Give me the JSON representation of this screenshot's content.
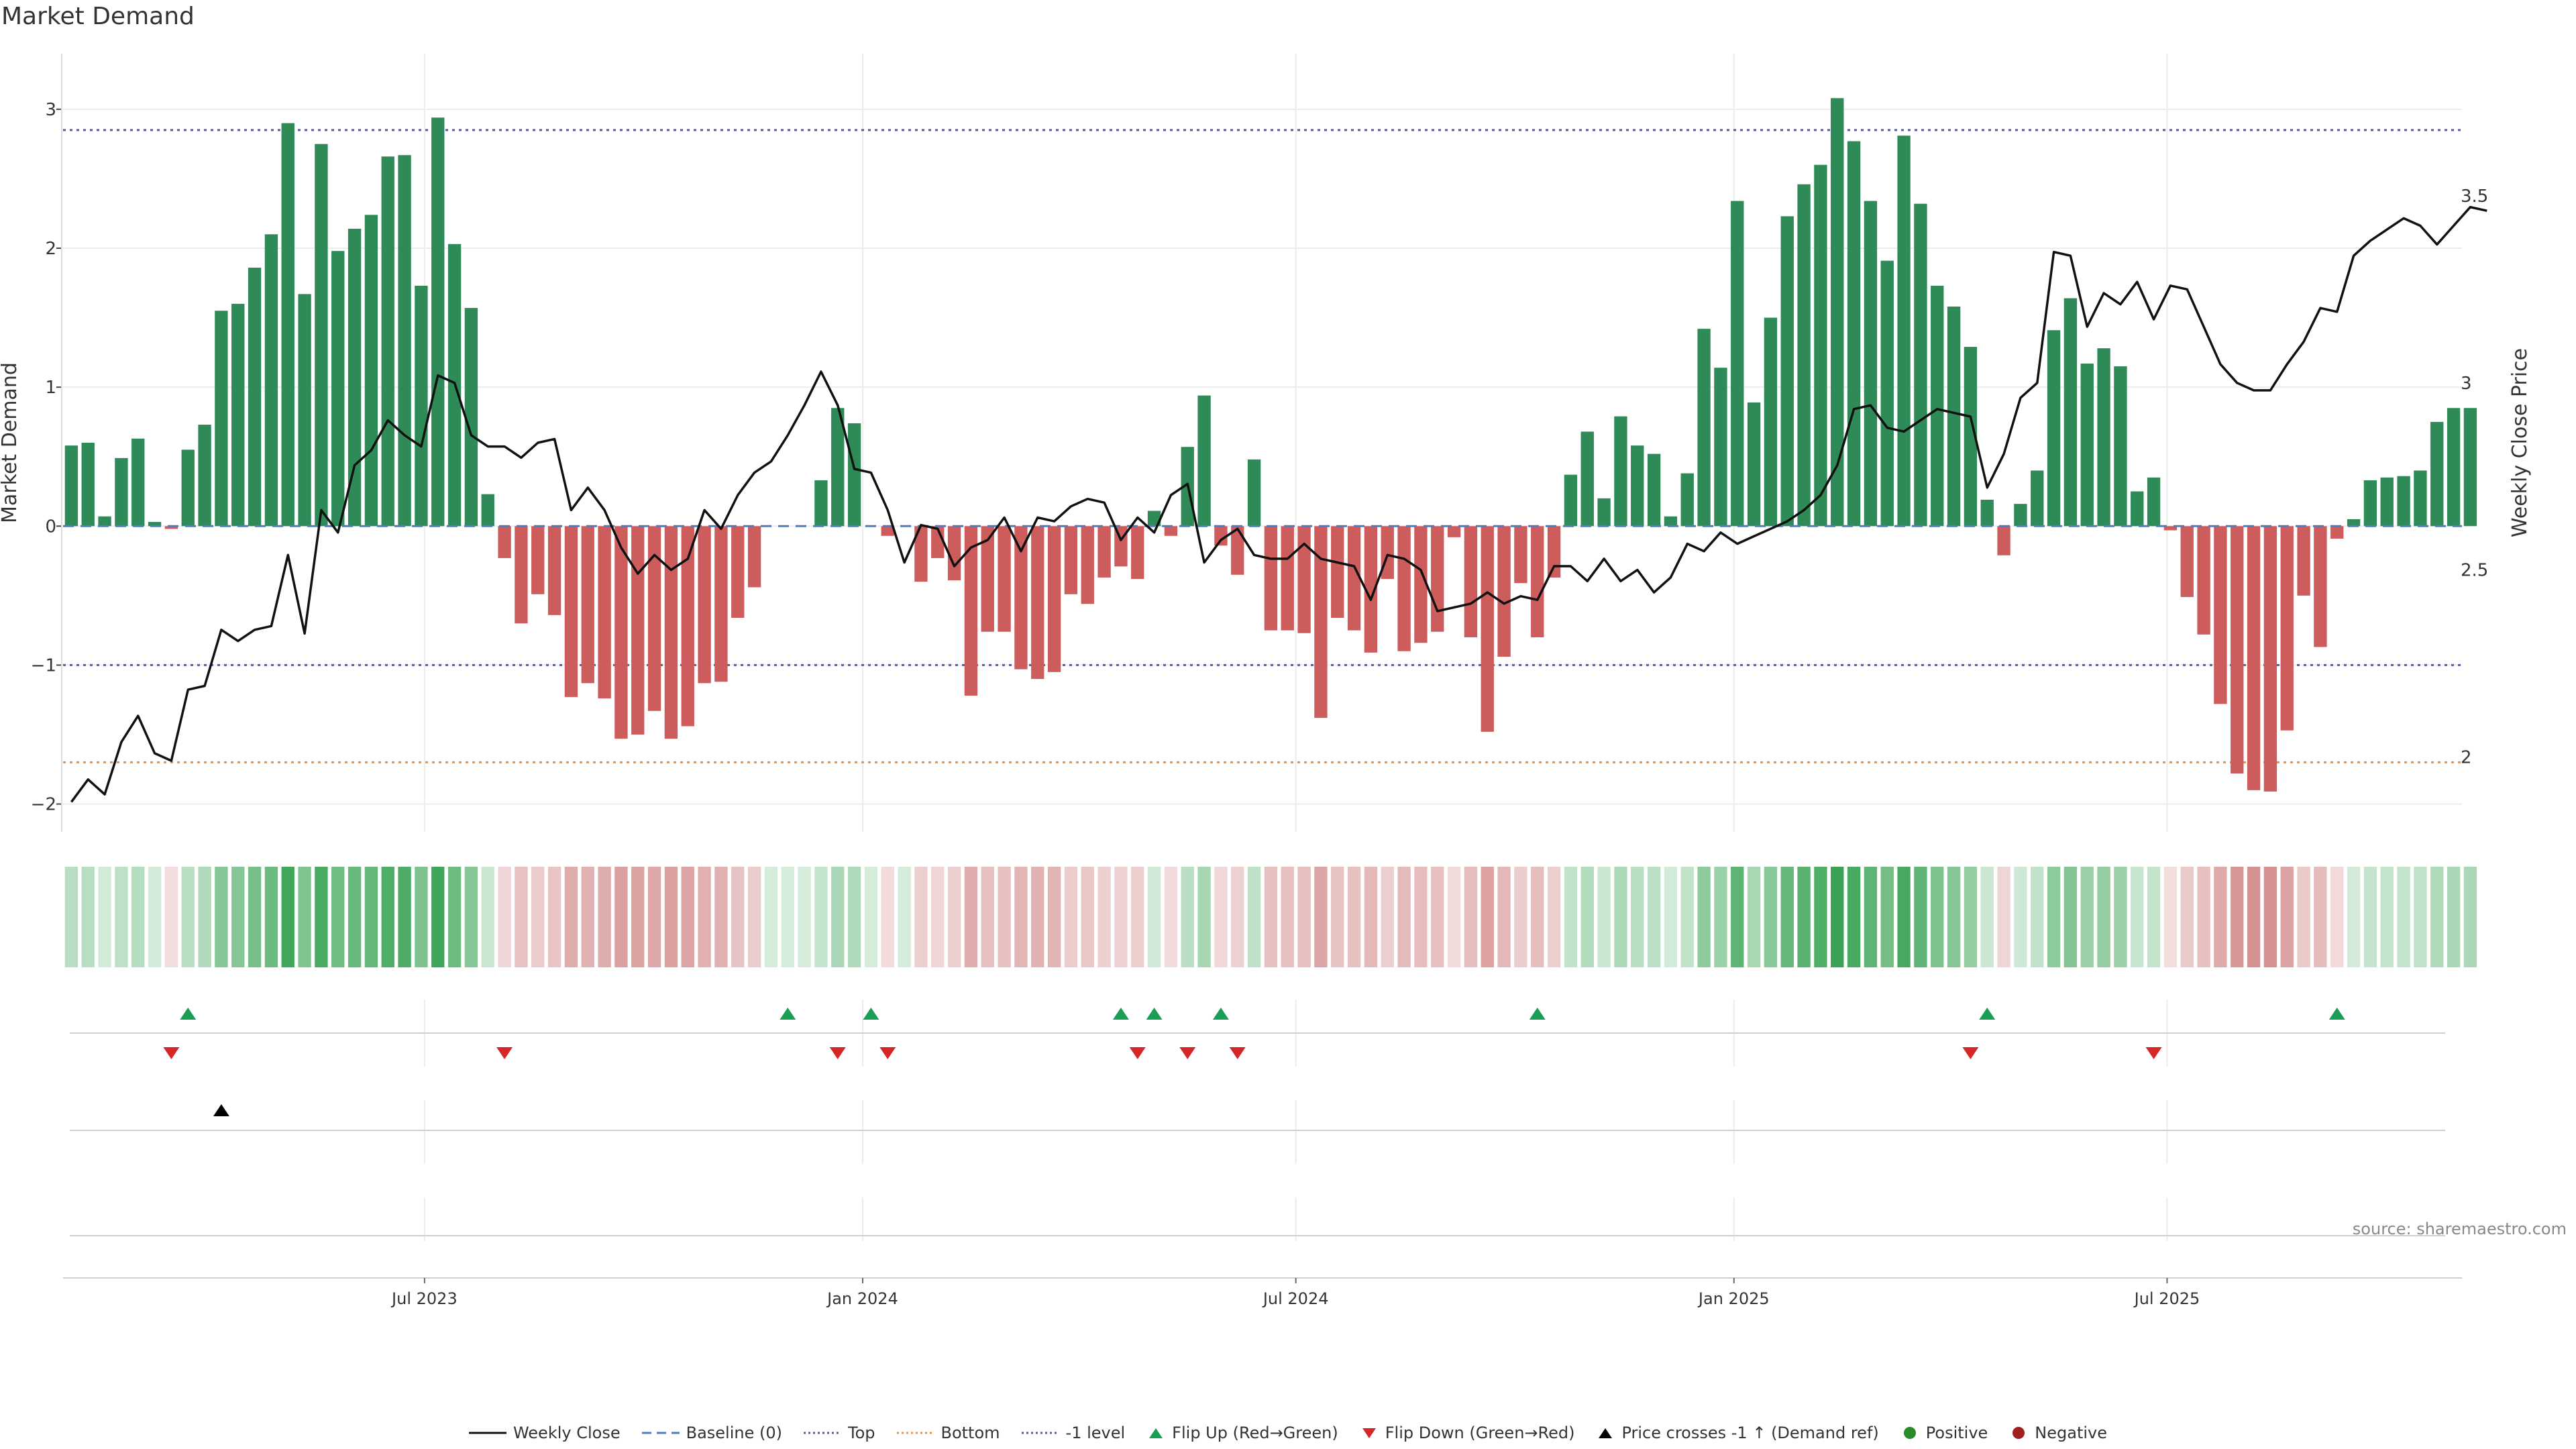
{
  "page": {
    "title": "Market Demand",
    "source": "source: sharemaestro.com"
  },
  "colors": {
    "positive_bar": "#2e8b57",
    "negative_bar": "#cd5c5c",
    "price_line": "#111111",
    "baseline": "#4a7ec0",
    "top_line": "#5a5a9a",
    "bottom_line": "#e8934a",
    "minus1_line": "#5a5a9a",
    "flip_up": "#1a9e55",
    "flip_down": "#d62728",
    "cross": "#000000",
    "heat_pos": "#2e9e4a",
    "heat_neg": "#c05a5a",
    "legend_positive": "#2a8a2a",
    "legend_negative": "#a02020"
  },
  "legend": [
    {
      "key": "weekly_close",
      "label": "Weekly Close",
      "marker": "line",
      "color": "#111111"
    },
    {
      "key": "baseline",
      "label": "Baseline (0)",
      "marker": "dash",
      "color": "#4a7ec0"
    },
    {
      "key": "top",
      "label": "Top",
      "marker": "dot",
      "color": "#5a5a9a"
    },
    {
      "key": "bottom",
      "label": "Bottom",
      "marker": "dot",
      "color": "#e8934a"
    },
    {
      "key": "minus1",
      "label": "-1 level",
      "marker": "dot",
      "color": "#5a5a9a"
    },
    {
      "key": "flip_up",
      "label": "Flip Up (Red→Green)",
      "marker": "tri-up",
      "color": "#1a9e55"
    },
    {
      "key": "flip_down",
      "label": "Flip Down (Green→Red)",
      "marker": "tri-down",
      "color": "#d62728"
    },
    {
      "key": "cross",
      "label": "Price crosses -1 ↑ (Demand ref)",
      "marker": "tri-up",
      "color": "#000000"
    },
    {
      "key": "positive",
      "label": "Positive",
      "marker": "circle",
      "color": "#2a8a2a"
    },
    {
      "key": "negative",
      "label": "Negative",
      "marker": "circle",
      "color": "#a02020"
    }
  ],
  "chart_data": {
    "type": "bar",
    "title": "Market Demand",
    "ylabel": "Market Demand",
    "y2label": "Weekly Close Price",
    "ylim": [
      -2.2,
      3.4
    ],
    "y2lim": [
      1.8,
      3.88
    ],
    "yticks": [
      3,
      2,
      1,
      0,
      -1,
      -2
    ],
    "ytick_labels": [
      "3",
      "2",
      "1",
      "0",
      "−1",
      "−2"
    ],
    "y2ticks": [
      3.5,
      3,
      2.5,
      2
    ],
    "y2tick_labels": [
      "3.5",
      "3",
      "2.5",
      "2"
    ],
    "x_index_range": [
      -0.5,
      143.5
    ],
    "xticks": [
      {
        "label": "Jul 2023",
        "index": 21.2
      },
      {
        "label": "Jan 2024",
        "index": 47.5
      },
      {
        "label": "Jul 2024",
        "index": 73.5
      },
      {
        "label": "Jan 2025",
        "index": 99.8
      },
      {
        "label": "Jul 2025",
        "index": 125.8
      }
    ],
    "reference_lines": {
      "baseline": 0,
      "top": 2.85,
      "bottom": -1.7,
      "minus1": -1
    },
    "demand": [
      0.58,
      0.6,
      0.07,
      0.49,
      0.63,
      0.03,
      -0.02,
      0.55,
      0.73,
      1.55,
      1.6,
      1.86,
      2.1,
      2.9,
      1.67,
      2.75,
      1.98,
      2.14,
      2.24,
      2.66,
      2.67,
      1.73,
      2.94,
      2.03,
      1.57,
      0.23,
      -0.23,
      -0.7,
      -0.49,
      -0.64,
      -1.23,
      -1.13,
      -1.24,
      -1.53,
      -1.5,
      -1.33,
      -1.53,
      -1.44,
      -1.13,
      -1.12,
      -0.66,
      -0.44,
      0,
      0,
      0,
      0.33,
      0.85,
      0.74,
      0,
      -0.07,
      0,
      -0.4,
      -0.23,
      -0.39,
      -1.22,
      -0.76,
      -0.76,
      -1.03,
      -1.1,
      -1.05,
      -0.49,
      -0.56,
      -0.37,
      -0.29,
      -0.38,
      0.11,
      -0.07,
      0.57,
      0.94,
      -0.14,
      -0.35,
      0.48,
      -0.75,
      -0.75,
      -0.77,
      -1.38,
      -0.66,
      -0.75,
      -0.91,
      -0.38,
      -0.9,
      -0.84,
      -0.76,
      -0.08,
      -0.8,
      -1.48,
      -0.94,
      -0.41,
      -0.8,
      -0.37,
      0.37,
      0.68,
      0.2,
      0.79,
      0.58,
      0.52,
      0.07,
      0.38,
      1.42,
      1.14,
      2.34,
      0.89,
      1.5,
      2.23,
      2.46,
      2.6,
      3.08,
      2.77,
      2.34,
      1.91,
      2.81,
      2.32,
      1.73,
      1.58,
      1.29,
      0.19,
      -0.21,
      0.16,
      0.4,
      1.41,
      1.64,
      1.17,
      1.28,
      1.15,
      0.25,
      0.35,
      -0.03,
      -0.51,
      -0.78,
      -1.28,
      -1.78,
      -1.9,
      -1.91,
      -1.47,
      -0.5,
      -0.87,
      -0.09,
      0.05,
      0.33,
      0.35,
      0.36,
      0.4,
      0.75,
      0.85,
      0.85
    ],
    "price": [
      1.88,
      1.94,
      1.9,
      2.04,
      2.11,
      2.01,
      1.99,
      2.18,
      2.19,
      2.34,
      2.31,
      2.34,
      2.35,
      2.54,
      2.33,
      2.66,
      2.6,
      2.78,
      2.82,
      2.9,
      2.86,
      2.83,
      3.02,
      3,
      2.86,
      2.83,
      2.83,
      2.8,
      2.84,
      2.85,
      2.66,
      2.72,
      2.66,
      2.56,
      2.49,
      2.54,
      2.5,
      2.53,
      2.66,
      2.61,
      2.7,
      2.76,
      2.79,
      2.86,
      2.94,
      3.03,
      2.94,
      2.77,
      2.76,
      2.66,
      2.52,
      2.62,
      2.61,
      2.51,
      2.56,
      2.58,
      2.64,
      2.55,
      2.64,
      2.63,
      2.67,
      2.69,
      2.68,
      2.58,
      2.64,
      2.6,
      2.7,
      2.73,
      2.52,
      2.58,
      2.61,
      2.54,
      2.53,
      2.53,
      2.57,
      2.53,
      2.52,
      2.51,
      2.42,
      2.54,
      2.53,
      2.5,
      2.39,
      2.4,
      2.41,
      2.44,
      2.41,
      2.43,
      2.42,
      2.51,
      2.51,
      2.47,
      2.53,
      2.47,
      2.5,
      2.44,
      2.48,
      2.57,
      2.55,
      2.6,
      2.57,
      2.59,
      2.61,
      2.63,
      2.66,
      2.7,
      2.78,
      2.93,
      2.94,
      2.88,
      2.87,
      2.9,
      2.93,
      2.92,
      2.91,
      2.72,
      2.81,
      2.96,
      3,
      3.35,
      3.34,
      3.15,
      3.24,
      3.21,
      3.27,
      3.17,
      3.26,
      3.25,
      3.15,
      3.05,
      3,
      2.98,
      2.98,
      3.05,
      3.11,
      3.2,
      3.19,
      3.34,
      3.38,
      3.41,
      3.44,
      3.42,
      3.37,
      3.42,
      3.47,
      3.46
    ],
    "flip_up_index": [
      7,
      43,
      48,
      63,
      65,
      69,
      88,
      115,
      136
    ],
    "flip_down_index": [
      6,
      26,
      46,
      49,
      64,
      67,
      70,
      114,
      125
    ],
    "cross_index": [
      9
    ]
  }
}
